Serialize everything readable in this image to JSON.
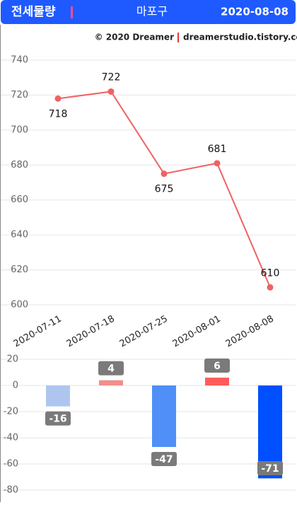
{
  "header": {
    "title": "전세물량",
    "region": "마포구",
    "date": "2020-08-08"
  },
  "credit": {
    "copyright": "© 2020  Dreamer",
    "site": "dreamerstudio.tistory.com"
  },
  "chart_data": [
    {
      "type": "line",
      "categories": [
        "2020-07-11",
        "2020-07-18",
        "2020-07-25",
        "2020-08-01",
        "2020-08-08"
      ],
      "values": [
        718,
        722,
        675,
        681,
        610
      ],
      "color": "#f06262",
      "ylim": [
        600,
        740
      ],
      "yticks": [
        600,
        620,
        640,
        660,
        680,
        700,
        720,
        740
      ],
      "grid": true
    },
    {
      "type": "bar",
      "values": [
        -16,
        4,
        -47,
        6,
        -71
      ],
      "colors": [
        "#aec6ef",
        "#f28e8e",
        "#4f8ff7",
        "#ff5c5c",
        "#0050ff"
      ],
      "ylim": [
        -80,
        20
      ],
      "yticks": [
        -80,
        -60,
        -40,
        -20,
        0,
        20
      ],
      "grid": true
    }
  ]
}
